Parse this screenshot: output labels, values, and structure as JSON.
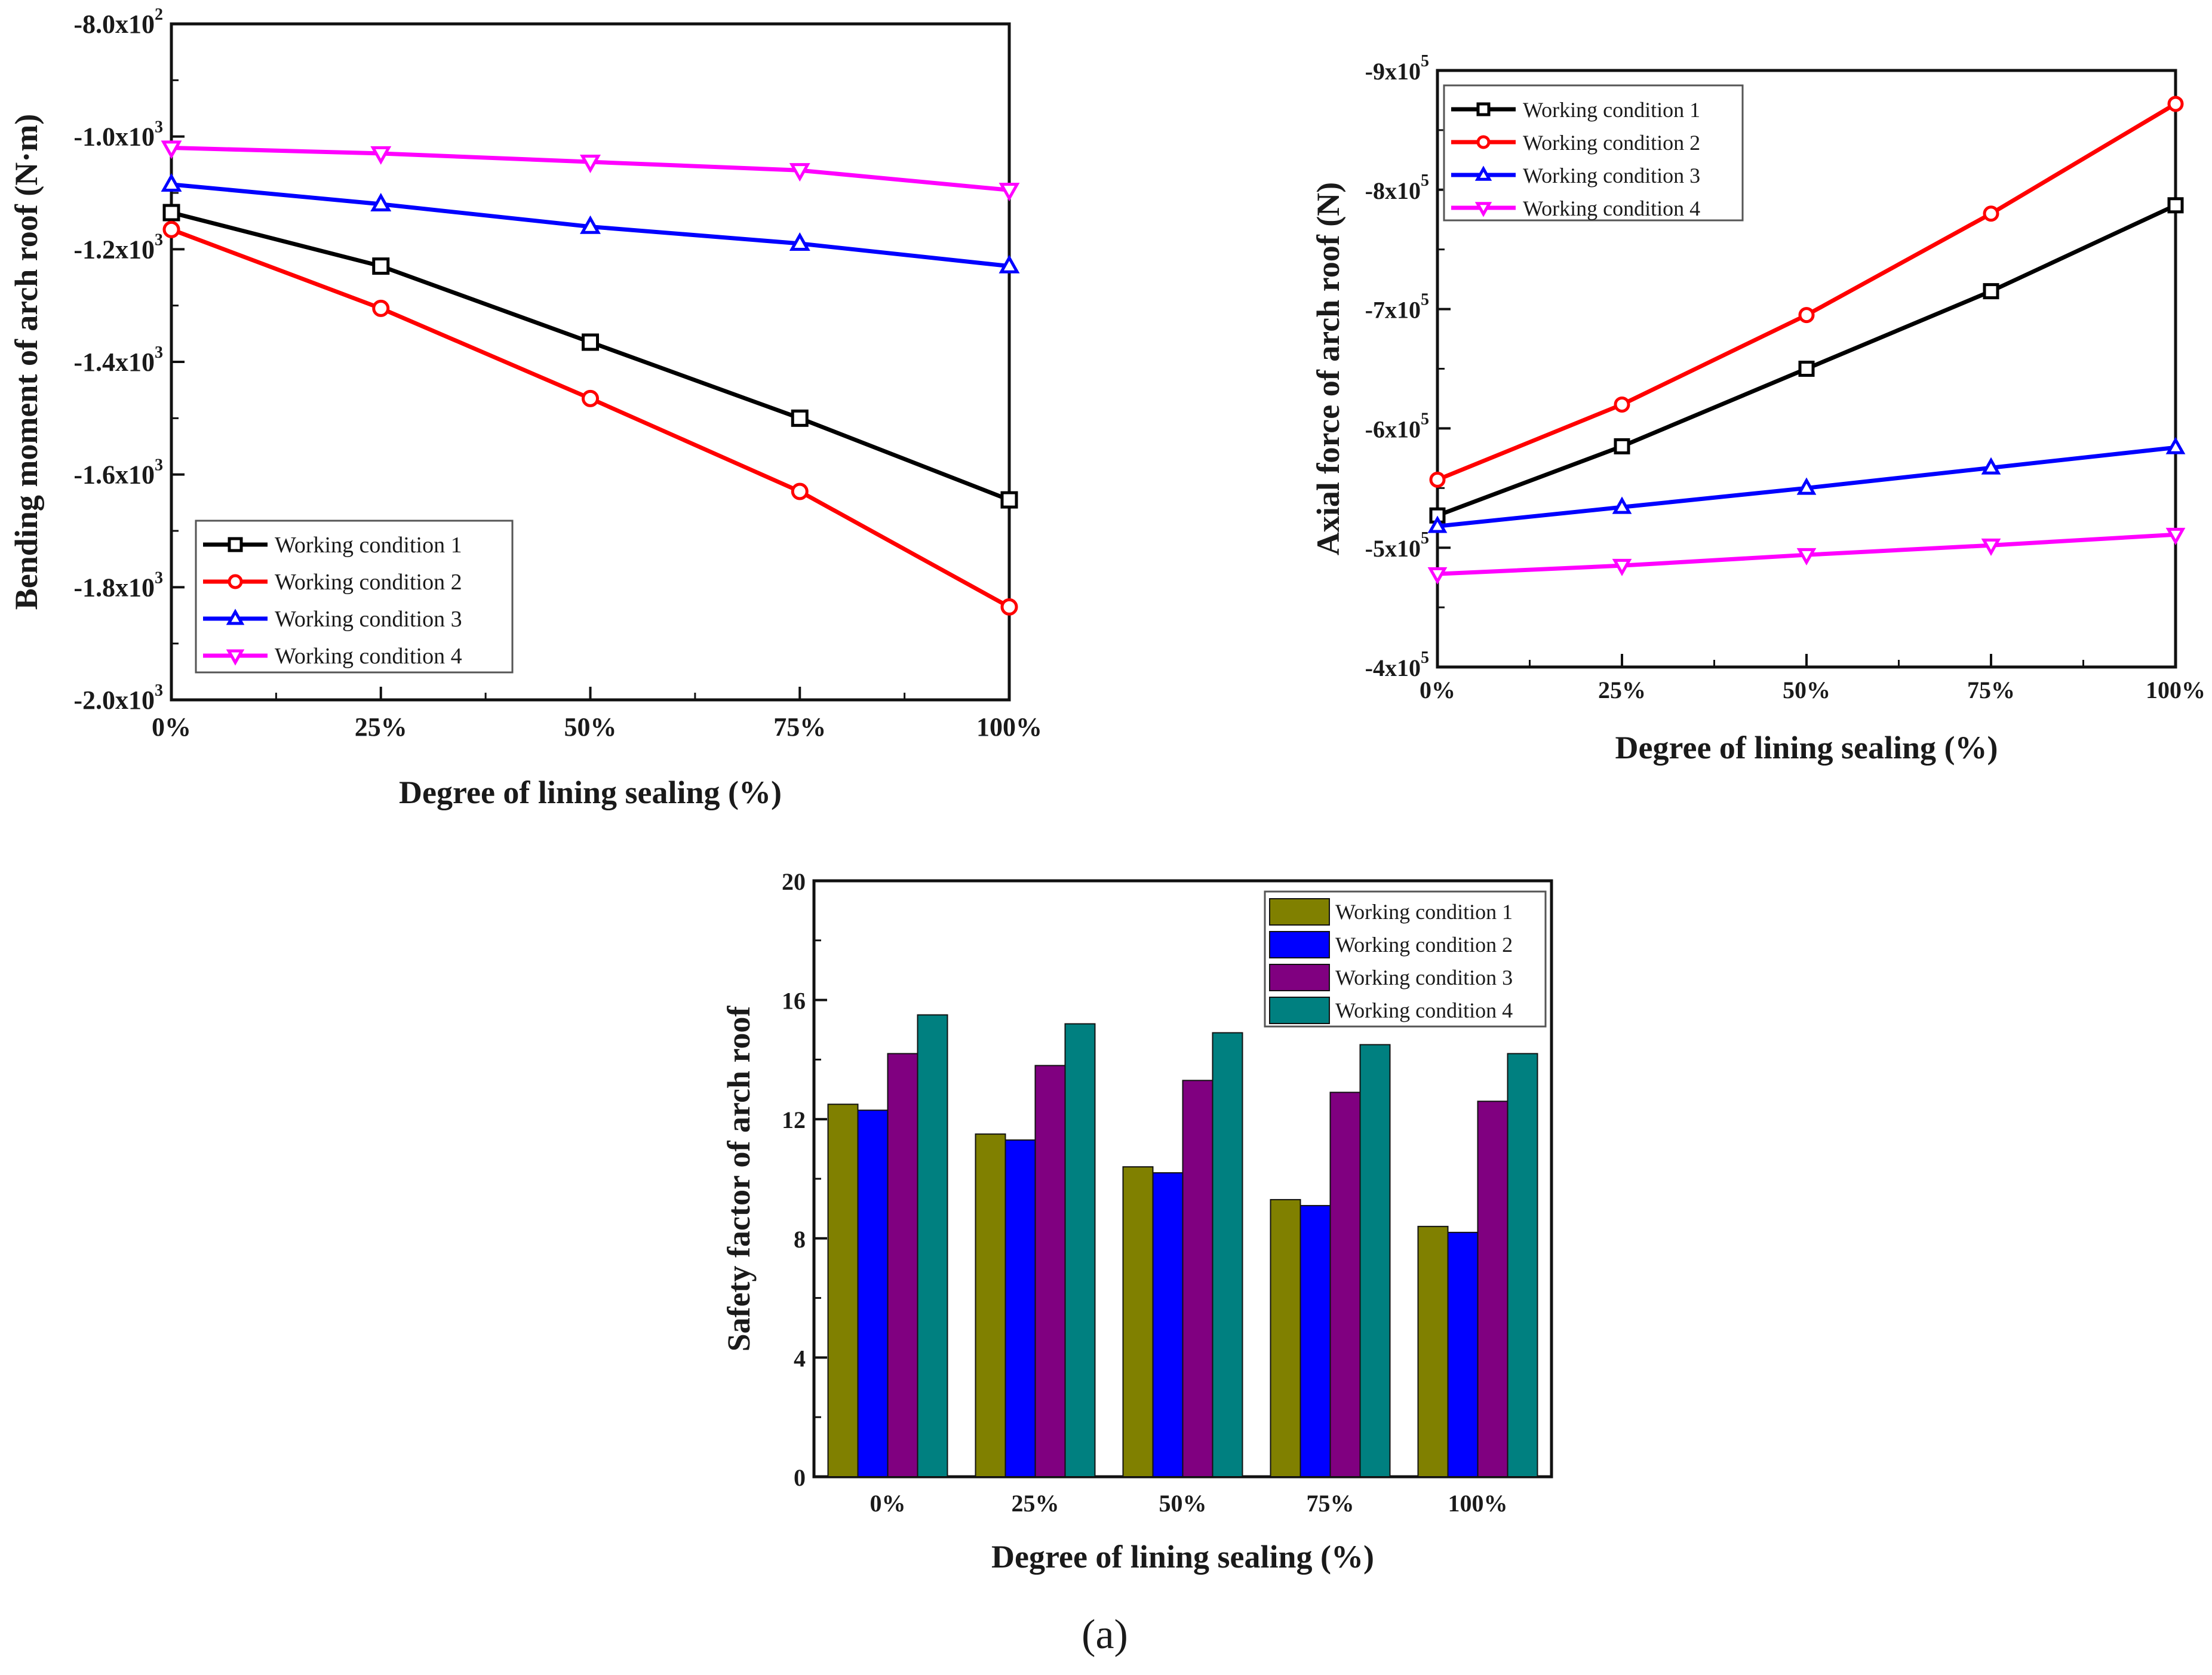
{
  "figure": {
    "panel_label": "(a)"
  },
  "chart_data": [
    {
      "type": "line",
      "id": "bending",
      "title": "",
      "xlabel": "Degree of lining sealing (%)",
      "ylabel": "Bending moment of arch roof (N·m)",
      "categories": [
        "0%",
        "25%",
        "50%",
        "75%",
        "100%"
      ],
      "ylim": [
        -2000,
        -800
      ],
      "y_ticks": [
        {
          "value": -800,
          "label": "-8.0x10",
          "exp": "2"
        },
        {
          "value": -1000,
          "label": "-1.0x10",
          "exp": "3"
        },
        {
          "value": -1200,
          "label": "-1.2x10",
          "exp": "3"
        },
        {
          "value": -1400,
          "label": "-1.4x10",
          "exp": "3"
        },
        {
          "value": -1600,
          "label": "-1.6x10",
          "exp": "3"
        },
        {
          "value": -1800,
          "label": "-1.8x10",
          "exp": "3"
        },
        {
          "value": -2000,
          "label": "-2.0x10",
          "exp": "3"
        }
      ],
      "legend_position": "bottom-left",
      "series": [
        {
          "name": "Working condition 1",
          "color": "#000000",
          "marker": "square",
          "values": [
            -1135,
            -1230,
            -1365,
            -1500,
            -1645
          ]
        },
        {
          "name": "Working condition 2",
          "color": "#ff0000",
          "marker": "circle",
          "values": [
            -1165,
            -1305,
            -1465,
            -1630,
            -1835
          ]
        },
        {
          "name": "Working condition 3",
          "color": "#0000ff",
          "marker": "triangle-up",
          "values": [
            -1085,
            -1120,
            -1160,
            -1190,
            -1230
          ]
        },
        {
          "name": "Working condition 4",
          "color": "#ff00ff",
          "marker": "triangle-down",
          "values": [
            -1020,
            -1030,
            -1045,
            -1060,
            -1095
          ]
        }
      ]
    },
    {
      "type": "line",
      "id": "axial",
      "title": "",
      "xlabel": "Degree of lining sealing (%)",
      "ylabel": "Axial force of arch roof (N)",
      "categories": [
        "0%",
        "25%",
        "50%",
        "75%",
        "100%"
      ],
      "ylim": [
        -400000,
        -900000
      ],
      "y_ticks": [
        {
          "value": -900000,
          "label": "-9x10",
          "exp": "5"
        },
        {
          "value": -800000,
          "label": "-8x10",
          "exp": "5"
        },
        {
          "value": -700000,
          "label": "-7x10",
          "exp": "5"
        },
        {
          "value": -600000,
          "label": "-6x10",
          "exp": "5"
        },
        {
          "value": -500000,
          "label": "-5x10",
          "exp": "5"
        },
        {
          "value": -400000,
          "label": "-4x10",
          "exp": "5"
        }
      ],
      "legend_position": "top-left",
      "series": [
        {
          "name": "Working condition 1",
          "color": "#000000",
          "marker": "square",
          "values": [
            -527000,
            -585000,
            -650000,
            -715000,
            -787000
          ]
        },
        {
          "name": "Working condition 2",
          "color": "#ff0000",
          "marker": "circle",
          "values": [
            -557000,
            -620000,
            -695000,
            -780000,
            -872000
          ]
        },
        {
          "name": "Working condition 3",
          "color": "#0000ff",
          "marker": "triangle-up",
          "values": [
            -518000,
            -534000,
            -550000,
            -567000,
            -584000
          ]
        },
        {
          "name": "Working condition 4",
          "color": "#ff00ff",
          "marker": "triangle-down",
          "values": [
            -478000,
            -485000,
            -494000,
            -502000,
            -511000
          ]
        }
      ]
    },
    {
      "type": "bar",
      "id": "safety",
      "title": "",
      "xlabel": "Degree of lining sealing (%)",
      "ylabel": "Safety factor of arch roof",
      "categories": [
        "0%",
        "25%",
        "50%",
        "75%",
        "100%"
      ],
      "ylim": [
        0,
        20
      ],
      "y_ticks": [
        {
          "value": 0,
          "label": "0"
        },
        {
          "value": 4,
          "label": "4"
        },
        {
          "value": 8,
          "label": "8"
        },
        {
          "value": 12,
          "label": "12"
        },
        {
          "value": 16,
          "label": "16"
        },
        {
          "value": 20,
          "label": "20"
        }
      ],
      "legend_position": "top-right",
      "series": [
        {
          "name": "Working condition 1",
          "color": "#808000",
          "values": [
            12.5,
            11.5,
            10.4,
            9.3,
            8.4
          ]
        },
        {
          "name": "Working condition 2",
          "color": "#0000ff",
          "values": [
            12.3,
            11.3,
            10.2,
            9.1,
            8.2
          ]
        },
        {
          "name": "Working condition 3",
          "color": "#800080",
          "values": [
            14.2,
            13.8,
            13.3,
            12.9,
            12.6
          ]
        },
        {
          "name": "Working condition 4",
          "color": "#008080",
          "values": [
            15.5,
            15.2,
            14.9,
            14.5,
            14.2
          ]
        }
      ]
    }
  ]
}
